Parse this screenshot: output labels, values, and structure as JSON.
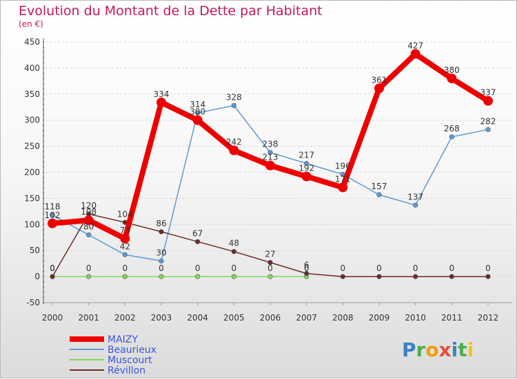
{
  "colors": {
    "title": "#c2185b",
    "legend_text": "#3a56d9",
    "grid": "#d8d8d8",
    "axis": "#555555"
  },
  "chart_data": {
    "type": "line",
    "title": "Evolution du Montant de la Dette par Habitant",
    "subtitle": "(en €)",
    "xlabel": "",
    "ylabel": "",
    "x": [
      "2000",
      "2001",
      "2002",
      "2003",
      "2004",
      "2005",
      "2006",
      "2007",
      "2008",
      "2009",
      "2010",
      "2011",
      "2012"
    ],
    "ylim": [
      -50,
      450
    ],
    "yticks": [
      -50,
      0,
      50,
      100,
      150,
      200,
      250,
      300,
      350,
      400,
      450
    ],
    "grid": "horizontal dashed",
    "legend_position": "bottom-left",
    "series": [
      {
        "name": "MAIZY",
        "color": "#ee0000",
        "style": "thick",
        "values": [
          102,
          108,
          73,
          334,
          300,
          242,
          213,
          192,
          171,
          361,
          427,
          380,
          337
        ],
        "labels": [
          "102",
          "108",
          "73",
          "334",
          "300",
          "242",
          "213",
          "192",
          "171",
          "361",
          "427",
          "380",
          "337"
        ]
      },
      {
        "name": "Beaurieux",
        "color": "#5a9bd5",
        "style": "thin",
        "values": [
          118,
          80,
          42,
          30,
          314,
          328,
          238,
          217,
          196,
          157,
          137,
          268,
          282
        ],
        "labels": [
          "118",
          "80",
          "42",
          "30",
          "314",
          "328",
          "238",
          "217",
          "196",
          "157",
          "137",
          "268",
          "282"
        ]
      },
      {
        "name": "Muscourt",
        "color": "#7ed957",
        "style": "thin",
        "values": [
          0,
          0,
          0,
          0,
          0,
          0,
          0,
          0,
          null,
          null,
          null,
          null,
          null
        ],
        "labels": [
          "0",
          "0",
          "0",
          "0",
          "0",
          "0",
          "0",
          "0",
          "",
          "",
          "",
          "",
          ""
        ]
      },
      {
        "name": "Révillon",
        "color": "#6b2a26",
        "style": "thin",
        "values": [
          0,
          120,
          104,
          86,
          67,
          48,
          27,
          6,
          0,
          0,
          0,
          0,
          0
        ],
        "labels": [
          "0",
          "120",
          "104",
          "86",
          "67",
          "48",
          "27",
          "6",
          "0",
          "0",
          "0",
          "0",
          "0"
        ]
      }
    ]
  },
  "logo": {
    "letters": [
      {
        "ch": "P",
        "color": "#3b82c4"
      },
      {
        "ch": "r",
        "color": "#4caf50"
      },
      {
        "ch": "o",
        "color": "#f39c12"
      },
      {
        "ch": "x",
        "color": "#e74c3c"
      },
      {
        "ch": "i",
        "color": "#3b82c4"
      },
      {
        "ch": "t",
        "color": "#4caf50"
      },
      {
        "ch": "i",
        "color": "#f1c40f"
      }
    ]
  }
}
